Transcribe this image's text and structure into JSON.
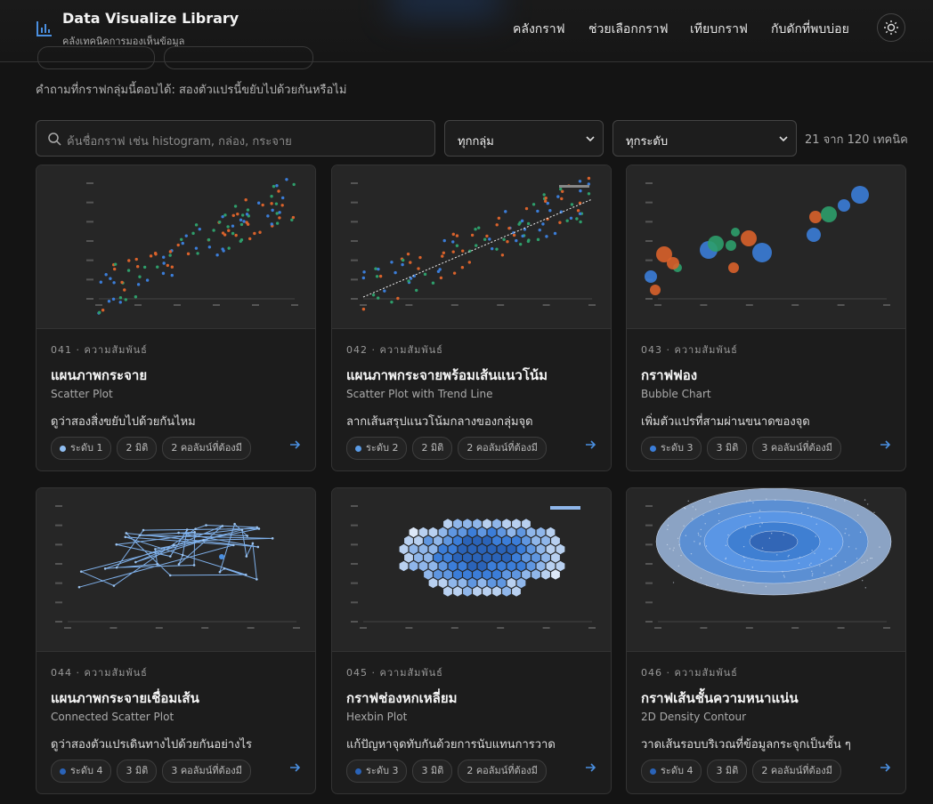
{
  "header": {
    "title": "Data Visualize Library",
    "subtitle": "คลังเทคนิคการมองเห็นข้อมูล",
    "nav": [
      "คลังกราฟ",
      "ช่วยเลือกกราฟ",
      "เทียบกราฟ",
      "กับดักที่พบบ่อย"
    ]
  },
  "question": "คำถามที่กราฟกลุ่มนี้ตอบได้: สองตัวแปรนี้ขยับไปด้วยกันหรือไม่",
  "filters": {
    "search_placeholder": "ค้นชื่อกราฟ เช่น histogram, กล่อง, กระจาย",
    "group": "ทุกกลุ่ม",
    "level": "ทุกระดับ",
    "count": "21 จาก 120 เทคนิค"
  },
  "cards": [
    {
      "eyebrow": "041 · ความสัมพันธ์",
      "title": "แผนภาพกระจาย",
      "subtitle": "Scatter Plot",
      "description": "ดูว่าสองสิ่งขยับไปด้วยกันไหม",
      "tags": [
        "ระดับ 1",
        "2 มิติ",
        "2 คอลัมน์ที่ต้องมี"
      ]
    },
    {
      "eyebrow": "042 · ความสัมพันธ์",
      "title": "แผนภาพกระจายพร้อมเส้นแนวโน้ม",
      "subtitle": "Scatter Plot with Trend Line",
      "description": "ลากเส้นสรุปแนวโน้มกลางของกลุ่มจุด",
      "tags": [
        "ระดับ 2",
        "2 มิติ",
        "2 คอลัมน์ที่ต้องมี"
      ]
    },
    {
      "eyebrow": "043 · ความสัมพันธ์",
      "title": "กราฟฟอง",
      "subtitle": "Bubble Chart",
      "description": "เพิ่มตัวแปรที่สามผ่านขนาดของจุด",
      "tags": [
        "ระดับ 3",
        "3 มิติ",
        "3 คอลัมน์ที่ต้องมี"
      ]
    },
    {
      "eyebrow": "044 · ความสัมพันธ์",
      "title": "แผนภาพกระจายเชื่อมเส้น",
      "subtitle": "Connected Scatter Plot",
      "description": "ดูว่าสองตัวแปรเดินทางไปด้วยกันอย่างไร",
      "tags": [
        "ระดับ 4",
        "3 มิติ",
        "3 คอลัมน์ที่ต้องมี"
      ]
    },
    {
      "eyebrow": "045 · ความสัมพันธ์",
      "title": "กราฟช่องหกเหลี่ยม",
      "subtitle": "Hexbin Plot",
      "description": "แก้ปัญหาจุดทับกันด้วยการนับแทนการวาด",
      "tags": [
        "ระดับ 3",
        "3 มิติ",
        "2 คอลัมน์ที่ต้องมี"
      ]
    },
    {
      "eyebrow": "046 · ความสัมพันธ์",
      "title": "กราฟเส้นชั้นความหนาแน่น",
      "subtitle": "2D Density Contour",
      "description": "วาดเส้นรอบบริเวณที่ข้อมูลกระจุกเป็นชั้น ๆ",
      "tags": [
        "ระดับ 4",
        "3 มิติ",
        "2 คอลัมน์ที่ต้องมี"
      ]
    }
  ]
}
